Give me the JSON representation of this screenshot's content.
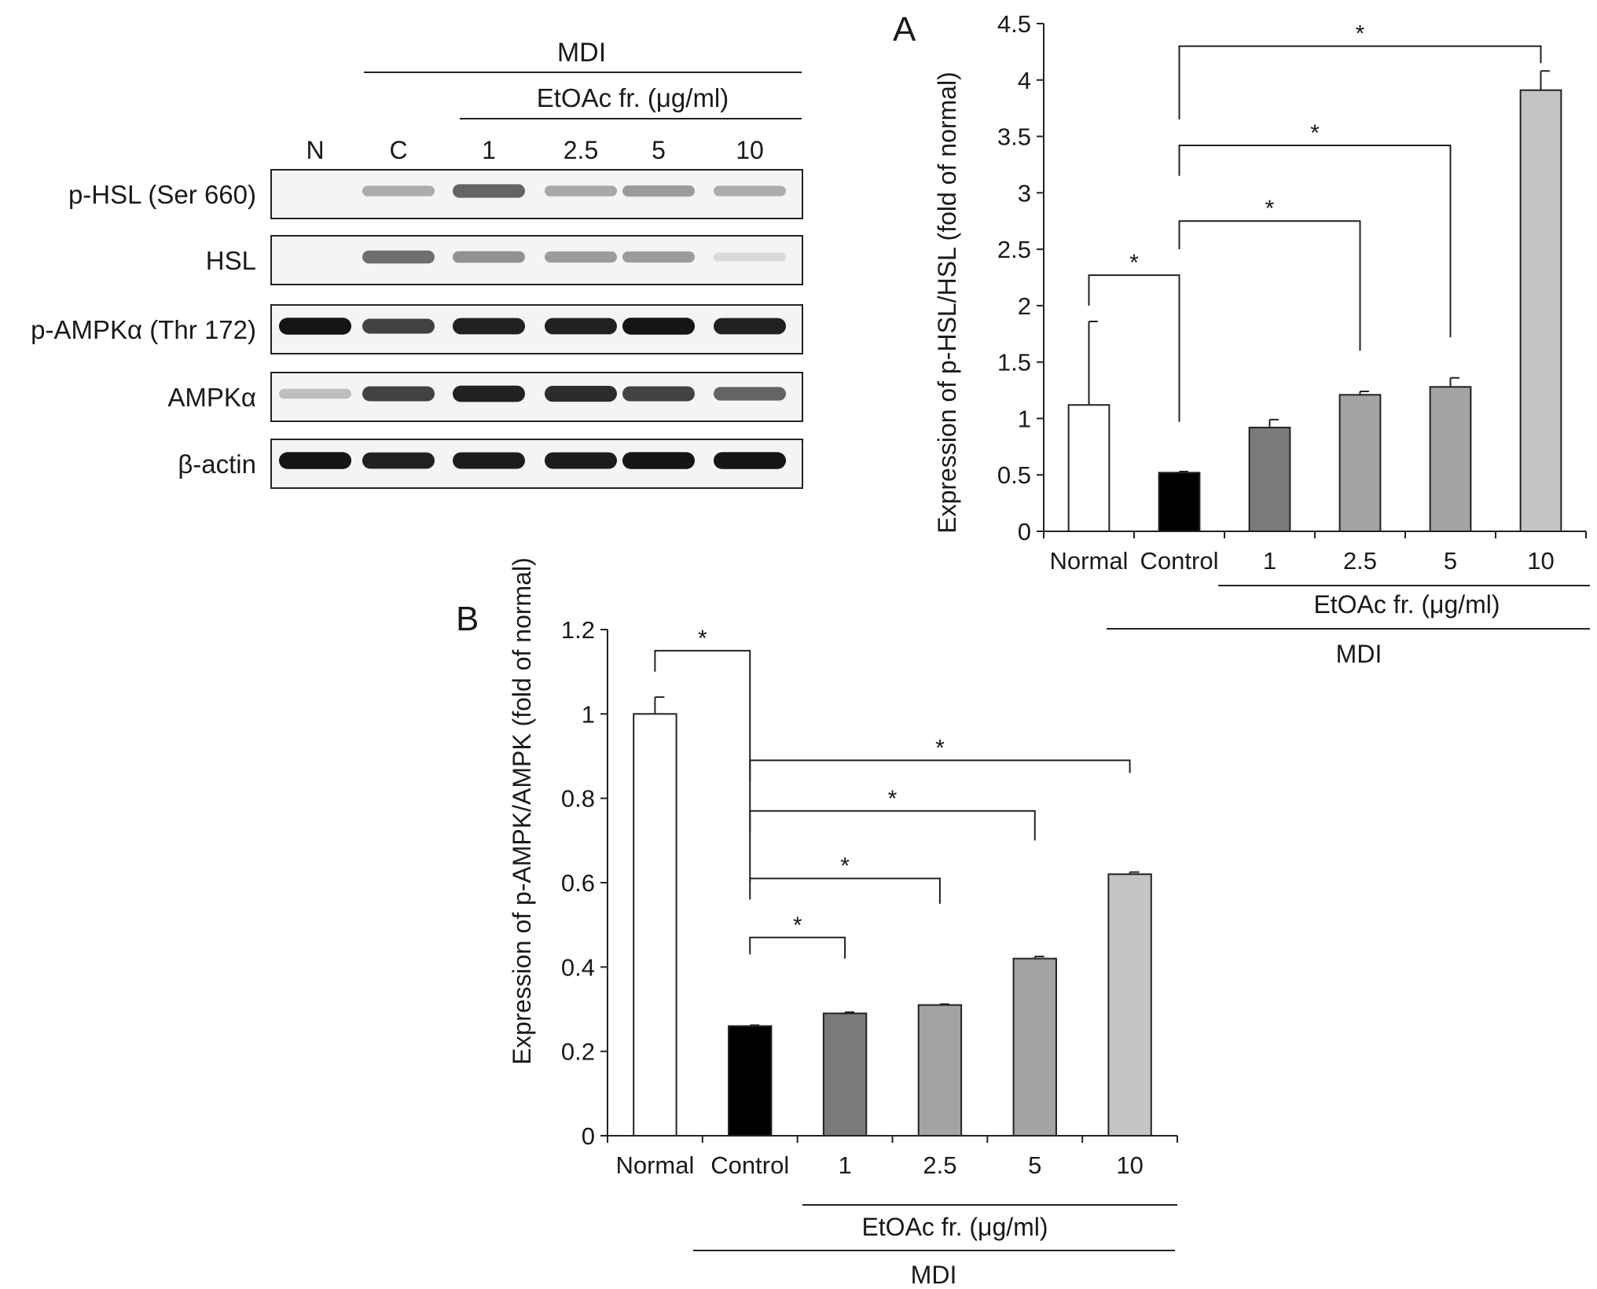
{
  "blot": {
    "mdi_label": "MDI",
    "etoac_label": "EtOAc fr. (μg/ml)",
    "lanes": [
      "N",
      "C",
      "1",
      "2.5",
      "5",
      "10"
    ],
    "rows": [
      {
        "label": "p-HSL (Ser 660)",
        "intensities": [
          0.0,
          0.28,
          0.6,
          0.3,
          0.35,
          0.28
        ]
      },
      {
        "label": "HSL",
        "intensities": [
          0.0,
          0.55,
          0.4,
          0.35,
          0.35,
          0.08
        ]
      },
      {
        "label": "p-AMPKα (Thr 172)",
        "intensities": [
          0.95,
          0.75,
          0.9,
          0.9,
          0.95,
          0.9
        ]
      },
      {
        "label": "AMPKα",
        "intensities": [
          0.2,
          0.75,
          0.9,
          0.85,
          0.75,
          0.6
        ]
      },
      {
        "label": "β-actin",
        "intensities": [
          0.95,
          0.9,
          0.92,
          0.92,
          0.95,
          0.95
        ]
      }
    ]
  },
  "chart_data": [
    {
      "panel": "A",
      "type": "bar",
      "ylabel": "Expression of p-HSL/HSL (fold of normal)",
      "ylim": [
        0,
        4.5
      ],
      "yticks": [
        "0",
        "0.5",
        "1",
        "1.5",
        "2",
        "2.5",
        "3",
        "3.5",
        "4",
        "4.5"
      ],
      "categories": [
        "Normal",
        "Control",
        "1",
        "2.5",
        "5",
        "10"
      ],
      "values": [
        1.12,
        0.52,
        0.92,
        1.21,
        1.28,
        3.91
      ],
      "errors": [
        0.74,
        0.01,
        0.07,
        0.03,
        0.08,
        0.17
      ],
      "bar_colors": [
        "#ffffff",
        "#000000",
        "#7a7a7a",
        "#a3a3a3",
        "#a3a3a3",
        "#c4c4c4"
      ],
      "group_labels": {
        "etoac": "EtOAc fr. (μg/ml)",
        "mdi": "MDI"
      },
      "significance": [
        {
          "from": "Normal",
          "to": "Control",
          "label": "*"
        },
        {
          "from": "Control",
          "to": "2.5",
          "label": "*"
        },
        {
          "from": "Control",
          "to": "5",
          "label": "*"
        },
        {
          "from": "Control",
          "to": "10",
          "label": "*"
        }
      ]
    },
    {
      "panel": "B",
      "type": "bar",
      "ylabel": "Expression of p-AMPK/AMPK (fold of normal)",
      "ylim": [
        0,
        1.2
      ],
      "yticks": [
        "0",
        "0.2",
        "0.4",
        "0.6",
        "0.8",
        "1",
        "1.2"
      ],
      "categories": [
        "Normal",
        "Control",
        "1",
        "2.5",
        "5",
        "10"
      ],
      "values": [
        1.0,
        0.26,
        0.29,
        0.31,
        0.42,
        0.62
      ],
      "errors": [
        0.04,
        0.002,
        0.003,
        0.002,
        0.005,
        0.005
      ],
      "bar_colors": [
        "#ffffff",
        "#000000",
        "#7a7a7a",
        "#a3a3a3",
        "#a3a3a3",
        "#c4c4c4"
      ],
      "group_labels": {
        "etoac": "EtOAc fr. (μg/ml)",
        "mdi": "MDI"
      },
      "significance": [
        {
          "from": "Normal",
          "to": "Control",
          "label": "*"
        },
        {
          "from": "Control",
          "to": "1",
          "label": "*"
        },
        {
          "from": "Control",
          "to": "2.5",
          "label": "*"
        },
        {
          "from": "Control",
          "to": "5",
          "label": "*"
        },
        {
          "from": "Control",
          "to": "10",
          "label": "*"
        }
      ]
    }
  ]
}
